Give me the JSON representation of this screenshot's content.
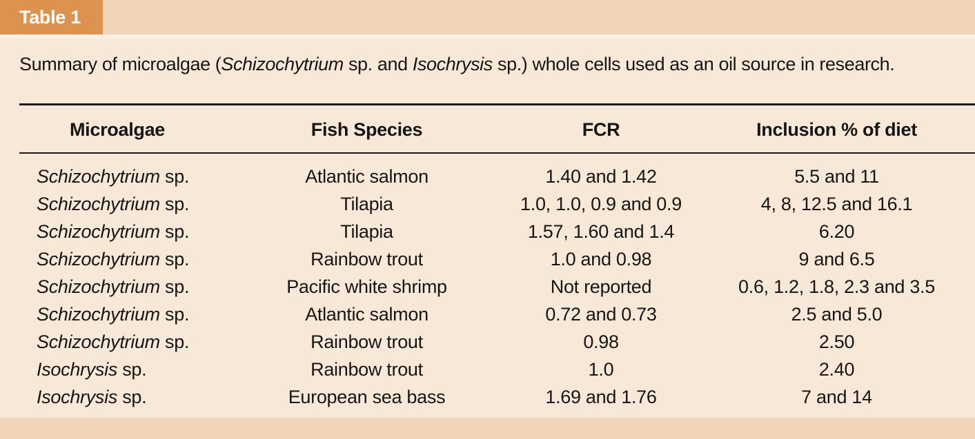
{
  "table_label": "Table 1",
  "caption": {
    "prefix": "Summary of microalgae (",
    "genus1": "Schizochytrium",
    "mid1": " sp. and ",
    "genus2": "Isochrysis",
    "suffix": " sp.) whole cells used as an oil source in research."
  },
  "headers": [
    "Microalgae",
    "Fish Species",
    "FCR",
    "Inclusion % of diet"
  ],
  "rows": [
    {
      "genus": "Schizochytrium",
      "sp": " sp.",
      "fish": "Atlantic salmon",
      "fcr": "1.40 and 1.42",
      "inclusion": "5.5 and 11"
    },
    {
      "genus": "Schizochytrium",
      "sp": " sp.",
      "fish": "Tilapia",
      "fcr": "1.0, 1.0, 0.9 and 0.9",
      "inclusion": "4, 8, 12.5 and 16.1"
    },
    {
      "genus": "Schizochytrium",
      "sp": " sp.",
      "fish": "Tilapia",
      "fcr": "1.57, 1.60 and 1.4",
      "inclusion": "6.20"
    },
    {
      "genus": "Schizochytrium",
      "sp": " sp.",
      "fish": "Rainbow trout",
      "fcr": "1.0 and 0.98",
      "inclusion": "9 and 6.5"
    },
    {
      "genus": "Schizochytrium",
      "sp": " sp.",
      "fish": "Pacific white shrimp",
      "fcr": "Not reported",
      "inclusion": "0.6, 1.2, 1.8, 2.3 and 3.5"
    },
    {
      "genus": "Schizochytrium",
      "sp": " sp.",
      "fish": "Atlantic salmon",
      "fcr": "0.72 and 0.73",
      "inclusion": "2.5 and 5.0"
    },
    {
      "genus": "Schizochytrium",
      "sp": " sp.",
      "fish": "Rainbow trout",
      "fcr": "0.98",
      "inclusion": "2.50"
    },
    {
      "genus": "Isochrysis",
      "sp": " sp.",
      "fish": "Rainbow trout",
      "fcr": "1.0",
      "inclusion": "2.40"
    },
    {
      "genus": "Isochrysis",
      "sp": " sp.",
      "fish": "European sea bass",
      "fcr": "1.69 and 1.76",
      "inclusion": "7 and 14"
    }
  ],
  "colors": {
    "tab": "#dc9350",
    "band": "#f1d5b8",
    "panel": "#f8e8d7"
  }
}
